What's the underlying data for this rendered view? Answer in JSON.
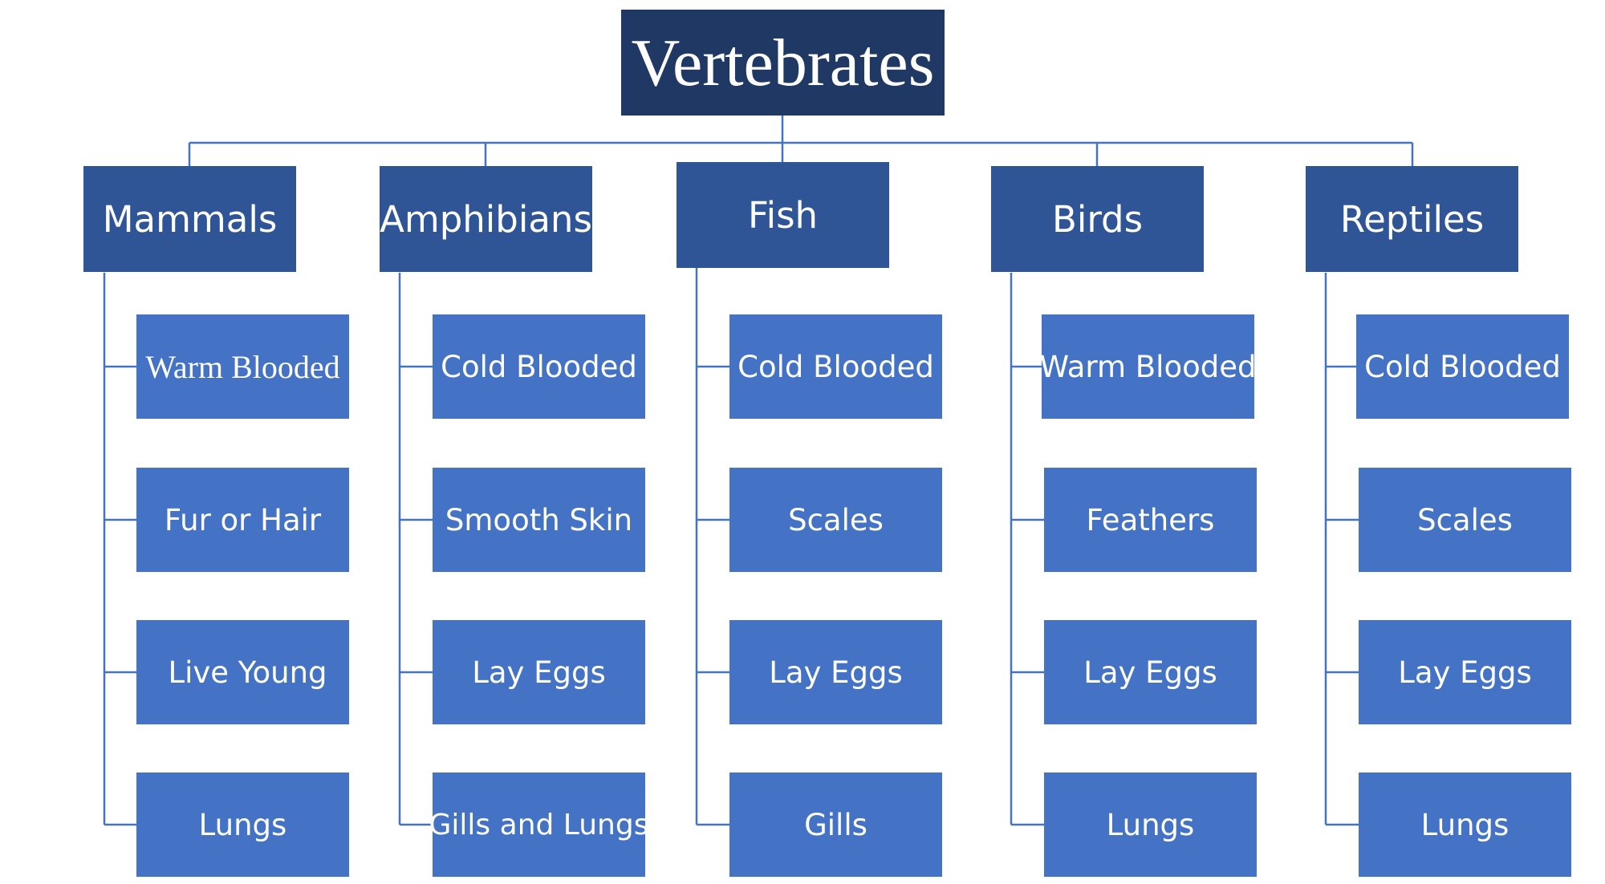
{
  "title": "Vertebrates",
  "colors": {
    "root_fill": "#203864",
    "category_fill": "#2f5597",
    "trait_fill": "#4472c4",
    "connector": "#4472c4",
    "text": "#ffffff"
  },
  "categories": [
    {
      "label": "Mammals",
      "traits": [
        "Warm Blooded",
        "Fur or Hair",
        "Live Young",
        "Lungs"
      ]
    },
    {
      "label": "Amphibians",
      "traits": [
        "Cold Blooded",
        "Smooth Skin",
        "Lay Eggs",
        "Gills and Lungs"
      ]
    },
    {
      "label": "Fish",
      "traits": [
        "Cold Blooded",
        "Scales",
        "Lay Eggs",
        "Gills"
      ]
    },
    {
      "label": "Birds",
      "traits": [
        "Warm Blooded",
        "Feathers",
        "Lay Eggs",
        "Lungs"
      ]
    },
    {
      "label": "Reptiles",
      "traits": [
        "Cold Blooded",
        "Scales",
        "Lay Eggs",
        "Lungs"
      ]
    }
  ]
}
